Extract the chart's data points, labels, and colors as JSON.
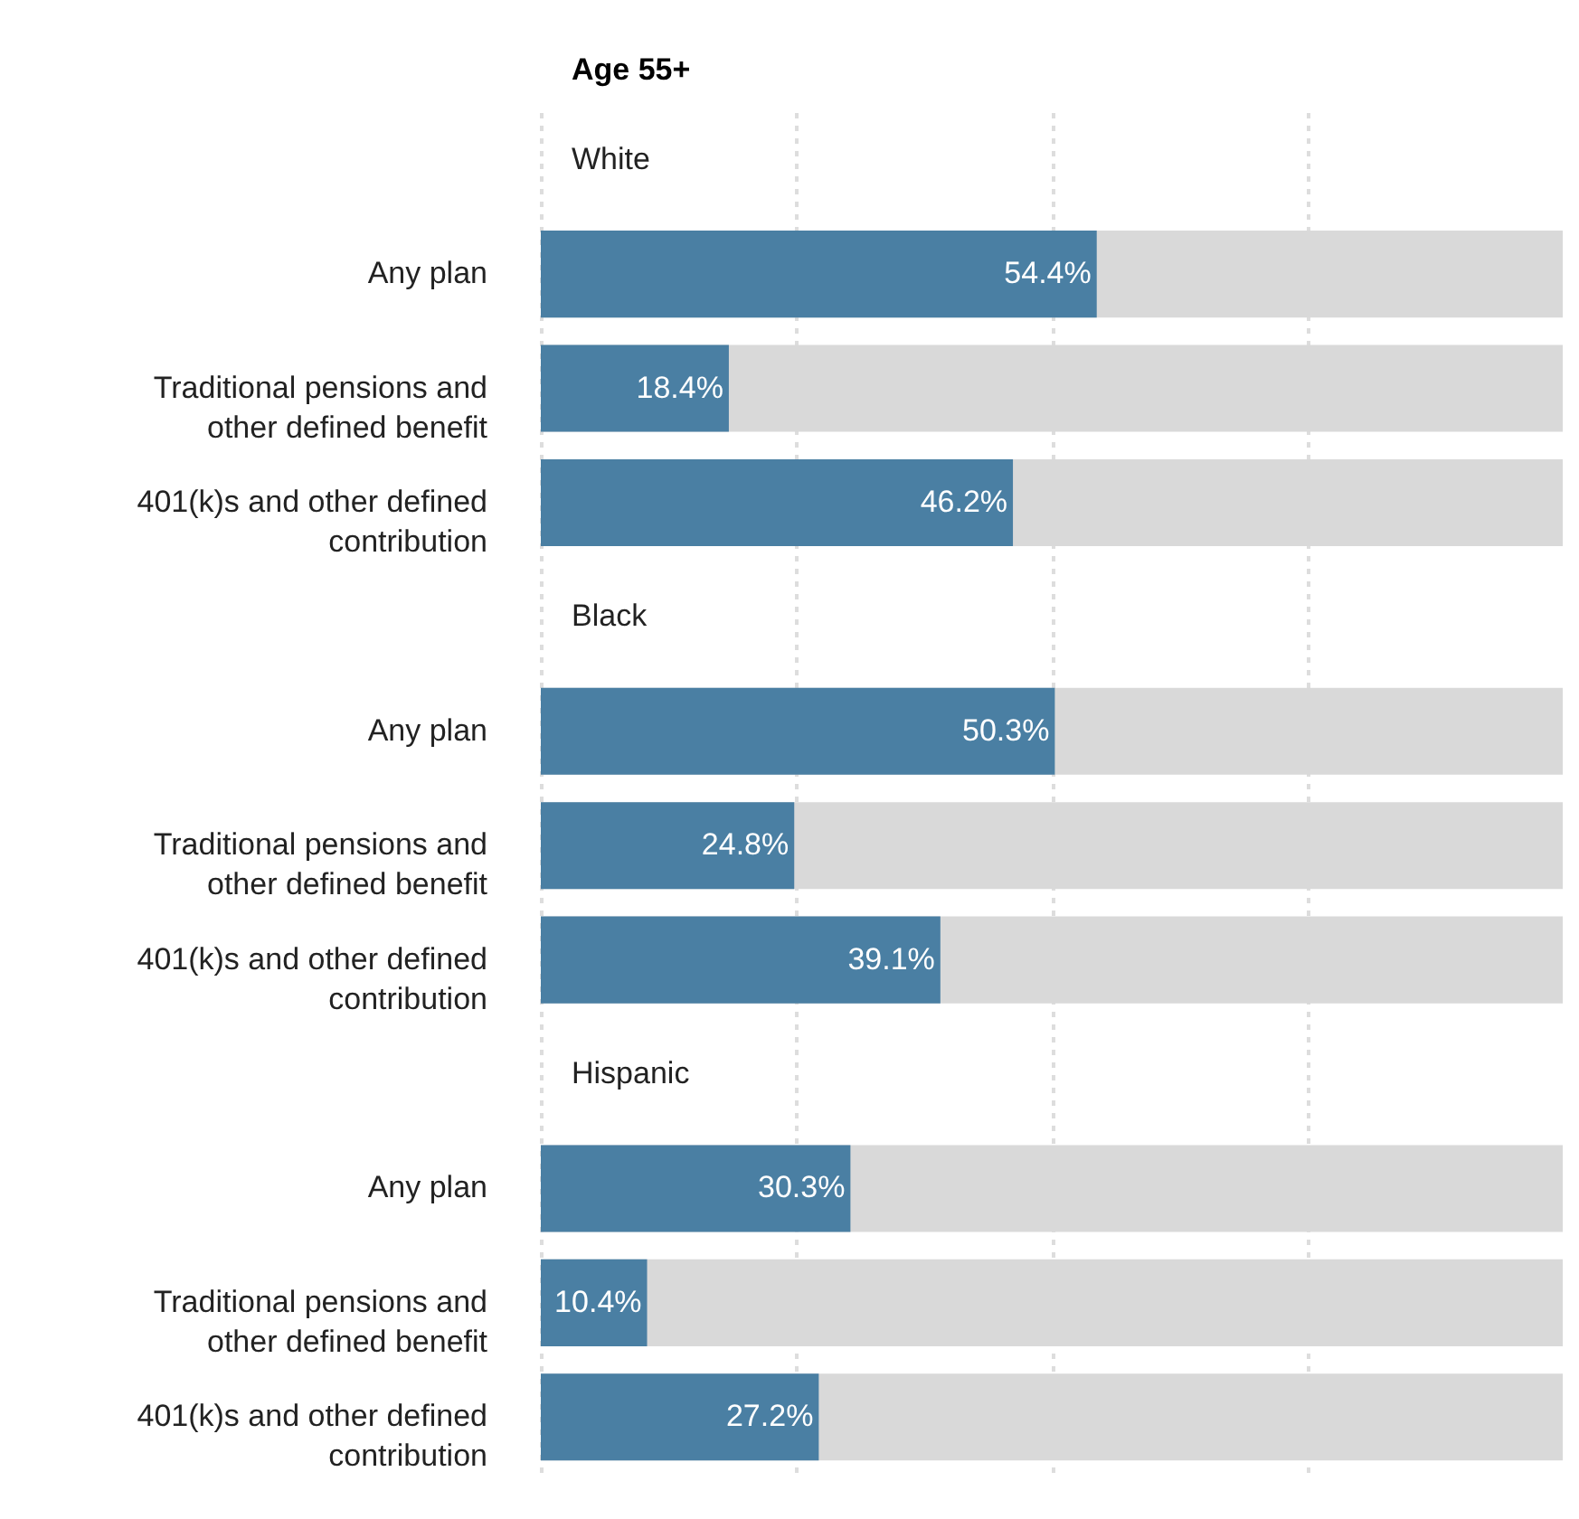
{
  "chart_data": {
    "type": "bar",
    "orientation": "horizontal",
    "title": "Age 55+",
    "categories": [
      "Any plan",
      "Traditional pensions and other defined benefit",
      "401(k)s and other defined contribution",
      "Any plan",
      "Traditional pensions and other defined benefit",
      "401(k)s and other defined contribution",
      "Any plan",
      "Traditional pensions and other defined benefit",
      "401(k)s and other defined contribution"
    ],
    "series": [
      {
        "color": "#4a7fa3",
        "values": [
          54.4,
          18.4,
          46.2,
          50.3,
          24.8,
          39.1,
          30.3,
          10.4,
          27.2
        ],
        "value_labels": [
          "54.4%",
          "18.4%",
          "46.2%",
          "50.3%",
          "24.8%",
          "39.1%",
          "30.3%",
          "10.4%",
          "27.2%"
        ]
      }
    ],
    "annotations": [
      "White",
      "Black",
      "Hispanic"
    ],
    "xlim": [
      0,
      100
    ],
    "xticks": [
      {
        "value": 0,
        "label": null
      },
      {
        "value": 25,
        "label": null
      },
      {
        "value": 50,
        "label": null
      },
      {
        "value": 75,
        "label": null
      }
    ],
    "grid": "x",
    "tick_labels": "y"
  }
}
